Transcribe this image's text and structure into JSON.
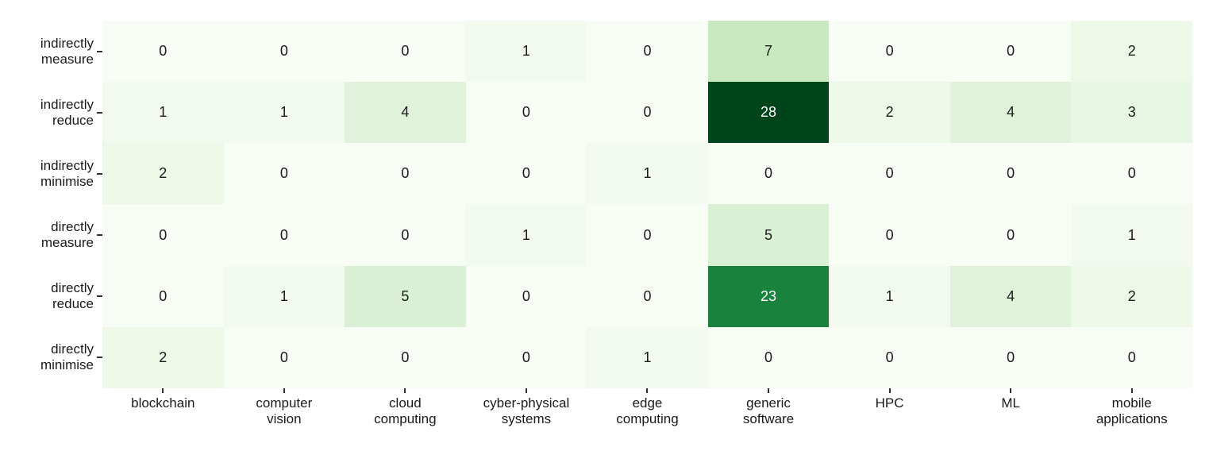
{
  "figure": {
    "background": "#ffffff",
    "axis_tick_color": "#303030",
    "label_color": "#1a1a1a"
  },
  "chart_data": {
    "type": "heatmap",
    "title": "",
    "xlabel": "",
    "ylabel": "",
    "colormap": "Greens",
    "vmin": 0,
    "vmax": 28,
    "grid": false,
    "legend": false,
    "x_categories": [
      "blockchain",
      "computer vision",
      "cloud computing",
      "cyber-physical systems",
      "edge computing",
      "generic software",
      "HPC",
      "ML",
      "mobile applications"
    ],
    "x_tick_labels": [
      [
        "blockchain"
      ],
      [
        "computer",
        "vision"
      ],
      [
        "cloud",
        "computing"
      ],
      [
        "cyber-physical",
        "systems"
      ],
      [
        "edge",
        "computing"
      ],
      [
        "generic",
        "software"
      ],
      [
        "HPC"
      ],
      [
        "ML"
      ],
      [
        "mobile",
        "applications"
      ]
    ],
    "y_categories": [
      "indirectly measure",
      "indirectly reduce",
      "indirectly minimise",
      "directly measure",
      "directly reduce",
      "directly minimise"
    ],
    "y_tick_labels": [
      [
        "indirectly",
        "measure"
      ],
      [
        "indirectly",
        "reduce"
      ],
      [
        "indirectly",
        "minimise"
      ],
      [
        "directly",
        "measure"
      ],
      [
        "directly",
        "reduce"
      ],
      [
        "directly",
        "minimise"
      ]
    ],
    "values": [
      [
        0,
        0,
        0,
        1,
        0,
        7,
        0,
        0,
        2
      ],
      [
        1,
        1,
        4,
        0,
        0,
        28,
        2,
        4,
        3
      ],
      [
        2,
        0,
        0,
        0,
        1,
        0,
        0,
        0,
        0
      ],
      [
        0,
        0,
        0,
        1,
        0,
        5,
        0,
        0,
        1
      ],
      [
        0,
        1,
        5,
        0,
        0,
        23,
        1,
        4,
        2
      ],
      [
        2,
        0,
        0,
        0,
        1,
        0,
        0,
        0,
        0
      ]
    ],
    "value_styles": {
      "0": {
        "bg": "#f7fcf5",
        "fg": "#1a1a1a"
      },
      "1": {
        "bg": "#f2faef",
        "fg": "#1a1a1a"
      },
      "2": {
        "bg": "#edf8e9",
        "fg": "#1a1a1a"
      },
      "3": {
        "bg": "#e7f6e2",
        "fg": "#1a1a1a"
      },
      "4": {
        "bg": "#e0f3da",
        "fg": "#1a1a1a"
      },
      "5": {
        "bg": "#daf0d4",
        "fg": "#1a1a1a"
      },
      "7": {
        "bg": "#c8e9bf",
        "fg": "#1a1a1a"
      },
      "23": {
        "bg": "#19833e",
        "fg": "#ffffff"
      },
      "28": {
        "bg": "#00441b",
        "fg": "#ffffff"
      }
    }
  }
}
